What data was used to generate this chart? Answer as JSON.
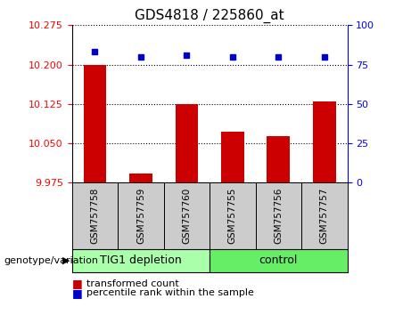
{
  "title": "GDS4818 / 225860_at",
  "samples": [
    "GSM757758",
    "GSM757759",
    "GSM757760",
    "GSM757755",
    "GSM757756",
    "GSM757757"
  ],
  "bar_values": [
    10.2,
    9.993,
    10.125,
    10.072,
    10.063,
    10.13
  ],
  "percentile_values": [
    83,
    80,
    81,
    80,
    80,
    80
  ],
  "bar_color": "#cc0000",
  "percentile_color": "#0000cc",
  "ylim_left": [
    9.975,
    10.275
  ],
  "ylim_right": [
    0,
    100
  ],
  "yticks_left": [
    9.975,
    10.05,
    10.125,
    10.2,
    10.275
  ],
  "yticks_right": [
    0,
    25,
    50,
    75,
    100
  ],
  "group1_label": "TIG1 depletion",
  "group2_label": "control",
  "group1_color": "#aaffaa",
  "group2_color": "#66ee66",
  "group_label_prefix": "genotype/variation",
  "legend_bar_label": "transformed count",
  "legend_point_label": "percentile rank within the sample",
  "bar_color_legend": "#cc0000",
  "percentile_color_legend": "#0000cc",
  "title_fontsize": 11,
  "tick_fontsize": 8,
  "sample_label_fontsize": 7.5
}
